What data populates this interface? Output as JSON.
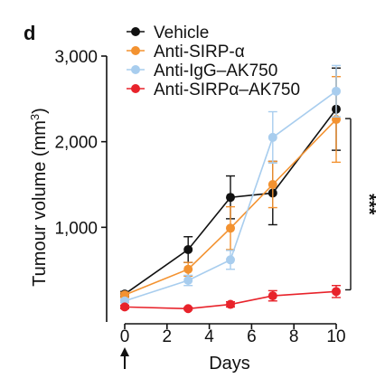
{
  "panel_label": "d",
  "chart_data": {
    "type": "line",
    "xlabel": "Days",
    "ylabel": "Tumour volume (mm3)",
    "xlim": [
      0,
      10
    ],
    "ylim": [
      0,
      3000
    ],
    "x_ticks": [
      0,
      2,
      4,
      6,
      8,
      10
    ],
    "y_ticks": [
      1000,
      2000,
      3000
    ],
    "y_tick_labels": [
      "1,000",
      "2,000",
      "3,000"
    ],
    "legend_position": "top-left",
    "treatment_start_day": 0,
    "series": [
      {
        "name": "Vehicle",
        "color": "#111111",
        "x": [
          0,
          3,
          5,
          7,
          10
        ],
        "y": [
          220,
          740,
          1350,
          1400,
          2380
        ],
        "err": [
          30,
          150,
          250,
          370,
          480
        ]
      },
      {
        "name": "Anti-SIRP-α",
        "color": "#f39230",
        "x": [
          0,
          3,
          5,
          7,
          10
        ],
        "y": [
          210,
          510,
          990,
          1500,
          2260
        ],
        "err": [
          30,
          80,
          250,
          270,
          500
        ]
      },
      {
        "name": "Anti-IgG–AK750",
        "color": "#a8cdee",
        "x": [
          0,
          3,
          5,
          7,
          10
        ],
        "y": [
          140,
          380,
          620,
          2050,
          2590
        ],
        "err": [
          20,
          60,
          110,
          300,
          300
        ]
      },
      {
        "name": "Anti-SIRPα–AK750",
        "color": "#e8232b",
        "x": [
          0,
          3,
          5,
          7,
          10
        ],
        "y": [
          70,
          50,
          100,
          200,
          250
        ],
        "err": [
          20,
          15,
          30,
          60,
          70
        ]
      }
    ],
    "annotations": [
      {
        "text": "***",
        "between": [
          2270,
          270
        ],
        "at_x": 10
      }
    ]
  }
}
